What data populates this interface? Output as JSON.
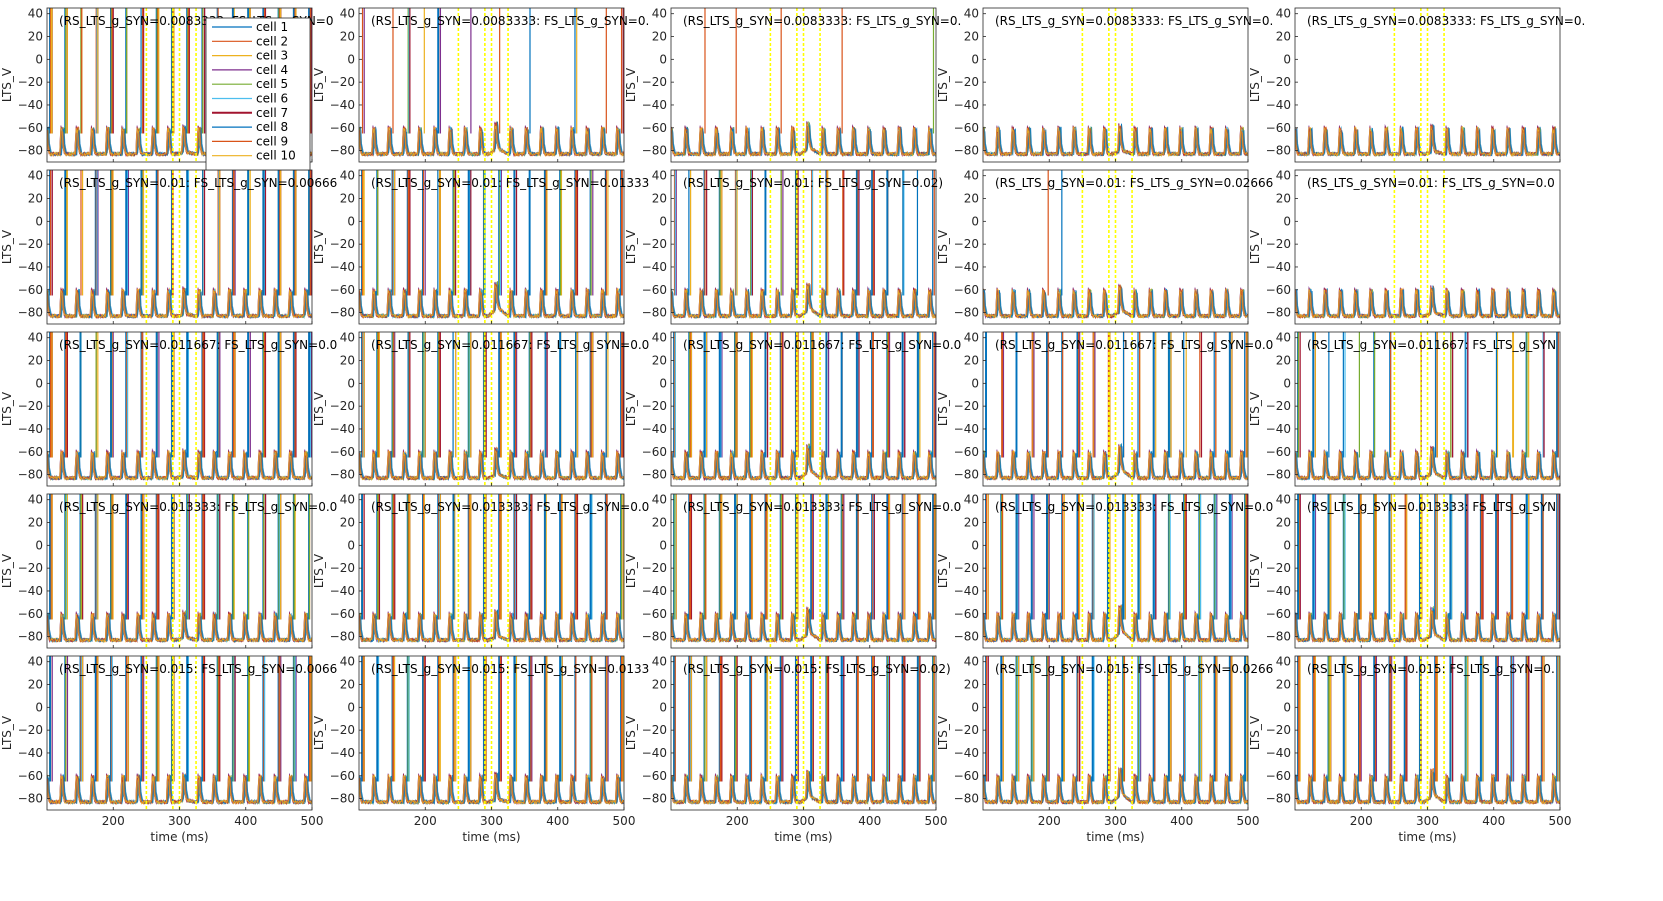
{
  "chart_data": {
    "type": "line",
    "layout": "5x5 grid of subplots",
    "xlabel": "time (ms)",
    "ylabel": "LTS_V",
    "xlim": [
      100,
      500
    ],
    "ylim": [
      -90,
      45
    ],
    "x_ticks": [
      200,
      300,
      400,
      500
    ],
    "y_ticks": [
      -80,
      -60,
      -40,
      -20,
      0,
      20,
      40
    ],
    "grid": false,
    "legend_position": "top-right (first panel)",
    "legend": [
      "cell 1",
      "cell 2",
      "cell 3",
      "cell 4",
      "cell 5",
      "cell 6",
      "cell 7",
      "cell 8",
      "cell 9",
      "cell 10"
    ],
    "series_colors": [
      "#0072BD",
      "#D95319",
      "#EDB120",
      "#7E2F8E",
      "#77AC30",
      "#4DBEEE",
      "#A2142F",
      "#0072BD",
      "#D95319",
      "#EDB120"
    ],
    "marker_color": "#FFFF00",
    "marker_times_ms": [
      250,
      290,
      300,
      325
    ],
    "background_spikes": {
      "description": "regular LTS bursts (~ every 23 ms) on a baseline of about -83 mV",
      "period_ms": 23,
      "baseline_mv": -83
    },
    "panels": [
      {
        "title": "(RS_LTS_g_SYN=0.0083333: FS_LTS_g_SYN=0",
        "spike_fraction": 0.95,
        "bump": 0.2
      },
      {
        "title": "(RS_LTS_g_SYN=0.0083333: FS_LTS_g_SYN=0.",
        "spike_fraction": 0.15,
        "bump": 0.6
      },
      {
        "title": "(RS_LTS_g_SYN=0.0083333: FS_LTS_g_SYN=0.",
        "spike_fraction": 0.05,
        "bump": 0.7
      },
      {
        "title": "(RS_LTS_g_SYN=0.0083333: FS_LTS_g_SYN=0.",
        "spike_fraction": 0.0,
        "bump": 0.4
      },
      {
        "title": "(RS_LTS_g_SYN=0.0083333: FS_LTS_g_SYN=0.",
        "spike_fraction": 0.0,
        "bump": 0.3
      },
      {
        "title": "(RS_LTS_g_SYN=0.01: FS_LTS_g_SYN=0.00666",
        "spike_fraction": 0.9,
        "bump": 0.2
      },
      {
        "title": "(RS_LTS_g_SYN=0.01: FS_LTS_g_SYN=0.01333",
        "spike_fraction": 0.8,
        "bump": 0.9
      },
      {
        "title": "(RS_LTS_g_SYN=0.01: FS_LTS_g_SYN=0.02)",
        "spike_fraction": 0.6,
        "bump": 0.8
      },
      {
        "title": "(RS_LTS_g_SYN=0.01: FS_LTS_g_SYN=0.02666",
        "spike_fraction": 0.05,
        "bump": 0.6
      },
      {
        "title": "(RS_LTS_g_SYN=0.01: FS_LTS_g_SYN=0.0",
        "spike_fraction": 0.0,
        "bump": 0.4
      },
      {
        "title": "(RS_LTS_g_SYN=0.011667: FS_LTS_g_SYN=0.0",
        "spike_fraction": 0.95,
        "bump": 0.2
      },
      {
        "title": "(RS_LTS_g_SYN=0.011667: FS_LTS_g_SYN=0.0",
        "spike_fraction": 0.95,
        "bump": 0.4
      },
      {
        "title": "(RS_LTS_g_SYN=0.011667: FS_LTS_g_SYN=0.0",
        "spike_fraction": 0.95,
        "bump": 0.9
      },
      {
        "title": "(RS_LTS_g_SYN=0.011667: FS_LTS_g_SYN=0.0",
        "spike_fraction": 0.6,
        "bump": 0.9
      },
      {
        "title": "(RS_LTS_g_SYN=0.011667: FS_LTS_g_SYN",
        "spike_fraction": 0.5,
        "bump": 0.6
      },
      {
        "title": "(RS_LTS_g_SYN=0.013333: FS_LTS_g_SYN=0.0",
        "spike_fraction": 1.0,
        "bump": 0.3
      },
      {
        "title": "(RS_LTS_g_SYN=0.013333: FS_LTS_g_SYN=0.0",
        "spike_fraction": 1.0,
        "bump": 0.4
      },
      {
        "title": "(RS_LTS_g_SYN=0.013333: FS_LTS_g_SYN=0.0",
        "spike_fraction": 1.0,
        "bump": 0.8
      },
      {
        "title": "(RS_LTS_g_SYN=0.013333: FS_LTS_g_SYN=0.0",
        "spike_fraction": 0.95,
        "bump": 1.0
      },
      {
        "title": "(RS_LTS_g_SYN=0.013333: FS_LTS_g_SYN",
        "spike_fraction": 0.95,
        "bump": 0.7
      },
      {
        "title": "(RS_LTS_g_SYN=0.015: FS_LTS_g_SYN=0.0066",
        "spike_fraction": 1.0,
        "bump": 0.2
      },
      {
        "title": "(RS_LTS_g_SYN=0.015: FS_LTS_g_SYN=0.0133",
        "spike_fraction": 1.0,
        "bump": 0.3
      },
      {
        "title": "(RS_LTS_g_SYN=0.015: FS_LTS_g_SYN=0.02)",
        "spike_fraction": 1.0,
        "bump": 0.6
      },
      {
        "title": "(RS_LTS_g_SYN=0.015: FS_LTS_g_SYN=0.0266",
        "spike_fraction": 1.0,
        "bump": 0.9
      },
      {
        "title": "(RS_LTS_g_SYN=0.015: FS_LTS_g_SYN=0.",
        "spike_fraction": 1.0,
        "bump": 0.8
      }
    ]
  }
}
